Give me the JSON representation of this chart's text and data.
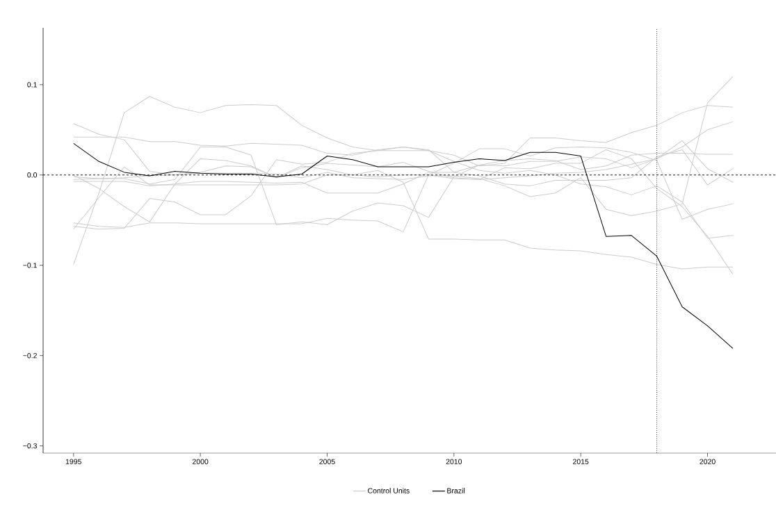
{
  "chart_data": {
    "type": "line",
    "x": [
      1995,
      1996,
      1997,
      1998,
      1999,
      2000,
      2001,
      2002,
      2003,
      2004,
      2005,
      2006,
      2007,
      2008,
      2009,
      2010,
      2011,
      2012,
      2013,
      2014,
      2015,
      2016,
      2017,
      2018,
      2019,
      2020,
      2021
    ],
    "xlim": [
      1993.8,
      2022.7
    ],
    "ylim": [
      -0.308,
      0.163
    ],
    "xticks": [
      1995,
      2000,
      2005,
      2010,
      2015,
      2020
    ],
    "yticks": [
      {
        "value": -0.3,
        "label": "−0.3"
      },
      {
        "value": -0.2,
        "label": "−0.2"
      },
      {
        "value": -0.1,
        "label": "−0.1"
      },
      {
        "value": 0,
        "label": "0.0"
      },
      {
        "value": 0.1,
        "label": "0.1"
      }
    ],
    "grid": false,
    "legend": "bottom",
    "line_style": "solid",
    "ref_lines": [
      {
        "axis": "y",
        "value": 0,
        "line_style": "dashed",
        "color": "#000000"
      },
      {
        "axis": "x",
        "value": 2018,
        "line_style": "dotted",
        "color": "#000000"
      }
    ],
    "series": [
      {
        "name": "Control Units",
        "color": "#cccccc",
        "values": [
          -0.099,
          -0.02,
          0.069,
          0.087,
          0.075,
          0.069,
          0.077,
          0.078,
          0.077,
          0.055,
          0.041,
          0.031,
          0.027,
          0.027,
          0.027,
          0.015,
          0.005,
          0.002,
          0.005,
          0.0,
          -0.01,
          -0.013,
          -0.022,
          -0.012,
          -0.03,
          -0.07,
          -0.067
        ]
      },
      {
        "color": "#cccccc",
        "values": [
          0.057,
          0.045,
          0.039,
          0.004,
          0.0,
          0.003,
          0.01,
          0.009,
          -0.003,
          0.01,
          0.006,
          0.0,
          -0.002,
          0.0,
          0.0,
          -0.004,
          -0.005,
          -0.003,
          -0.001,
          0.002,
          0.003,
          0.006,
          0.012,
          0.018,
          0.038,
          0.007,
          -0.008
        ]
      },
      {
        "color": "#cccccc",
        "values": [
          0.042,
          0.042,
          0.042,
          0.037,
          0.037,
          0.033,
          0.032,
          0.035,
          0.034,
          0.033,
          0.024,
          0.022,
          0.028,
          0.031,
          0.027,
          0.022,
          0.01,
          0.013,
          0.041,
          0.041,
          0.038,
          0.036,
          0.047,
          0.055,
          0.069,
          0.077,
          0.075
        ]
      },
      {
        "color": "#cccccc",
        "values": [
          -0.053,
          -0.057,
          -0.058,
          -0.053,
          -0.053,
          -0.054,
          -0.054,
          -0.054,
          -0.054,
          -0.054,
          -0.048,
          -0.05,
          -0.051,
          -0.063,
          0.0,
          0.013,
          0.029,
          0.029,
          0.021,
          0.03,
          0.031,
          0.03,
          0.025,
          0.016,
          -0.049,
          -0.038,
          -0.032
        ]
      },
      {
        "color": "#cccccc",
        "values": [
          -0.06,
          -0.025,
          0.009,
          -0.011,
          -0.011,
          -0.011,
          -0.011,
          -0.011,
          -0.011,
          -0.01,
          0.0,
          0.0,
          0.005,
          -0.008,
          -0.071,
          -0.071,
          -0.072,
          -0.072,
          -0.081,
          -0.083,
          -0.084,
          -0.088,
          -0.091,
          -0.099,
          -0.104,
          -0.102,
          -0.102
        ]
      },
      {
        "color": "#cccccc",
        "values": [
          0.0,
          -0.015,
          -0.035,
          -0.052,
          -0.01,
          0.018,
          0.016,
          0.01,
          -0.003,
          0.008,
          0.013,
          0.011,
          0.009,
          0.014,
          0.004,
          -0.003,
          -0.005,
          0.008,
          0.007,
          0.013,
          0.013,
          0.028,
          0.018,
          -0.015,
          -0.035,
          -0.068,
          -0.11
        ]
      },
      {
        "color": "#cccccc",
        "values": [
          -0.057,
          -0.06,
          -0.059,
          -0.026,
          -0.03,
          -0.044,
          -0.044,
          -0.023,
          0.017,
          0.012,
          0.014,
          0.024,
          0.027,
          0.031,
          0.028,
          0.003,
          0.011,
          0.016,
          0.018,
          0.016,
          0.006,
          0.01,
          0.022,
          0.024,
          0.024,
          0.023,
          0.023
        ]
      },
      {
        "color": "#cccccc",
        "values": [
          -0.005,
          -0.004,
          -0.004,
          -0.01,
          -0.005,
          0.031,
          0.031,
          0.022,
          -0.055,
          -0.052,
          -0.055,
          -0.04,
          -0.031,
          -0.034,
          -0.047,
          -0.002,
          0.011,
          0.01,
          0.015,
          0.015,
          0.02,
          0.018,
          0.008,
          0.018,
          0.031,
          0.05,
          0.059
        ]
      },
      {
        "color": "#cccccc",
        "values": [
          -0.007,
          -0.007,
          -0.007,
          -0.012,
          -0.01,
          -0.007,
          -0.007,
          -0.008,
          -0.009,
          -0.008,
          -0.02,
          -0.02,
          -0.02,
          -0.01,
          0.003,
          0.003,
          -0.001,
          -0.01,
          -0.012,
          -0.006,
          -0.006,
          -0.006,
          -0.003,
          0.02,
          0.028,
          -0.011,
          0.007
        ]
      },
      {
        "color": "#cccccc",
        "values": [
          -0.002,
          -0.004,
          -0.003,
          -0.001,
          0.0,
          0.002,
          0.002,
          0.002,
          0.001,
          -0.003,
          0.003,
          -0.003,
          -0.004,
          -0.005,
          -0.001,
          -0.001,
          -0.004,
          -0.012,
          -0.024,
          -0.02,
          -0.003,
          -0.038,
          -0.045,
          -0.04,
          -0.032,
          0.08,
          0.109
        ]
      },
      {
        "name": "Brazil",
        "color": "#000000",
        "values": [
          0.035,
          0.015,
          0.003,
          -0.001,
          0.004,
          0.002,
          0.001,
          0.001,
          -0.002,
          0.001,
          0.021,
          0.017,
          0.009,
          0.009,
          0.009,
          0.014,
          0.018,
          0.016,
          0.025,
          0.025,
          0.021,
          -0.068,
          -0.067,
          -0.09,
          -0.146,
          -0.167,
          -0.192
        ]
      }
    ]
  }
}
